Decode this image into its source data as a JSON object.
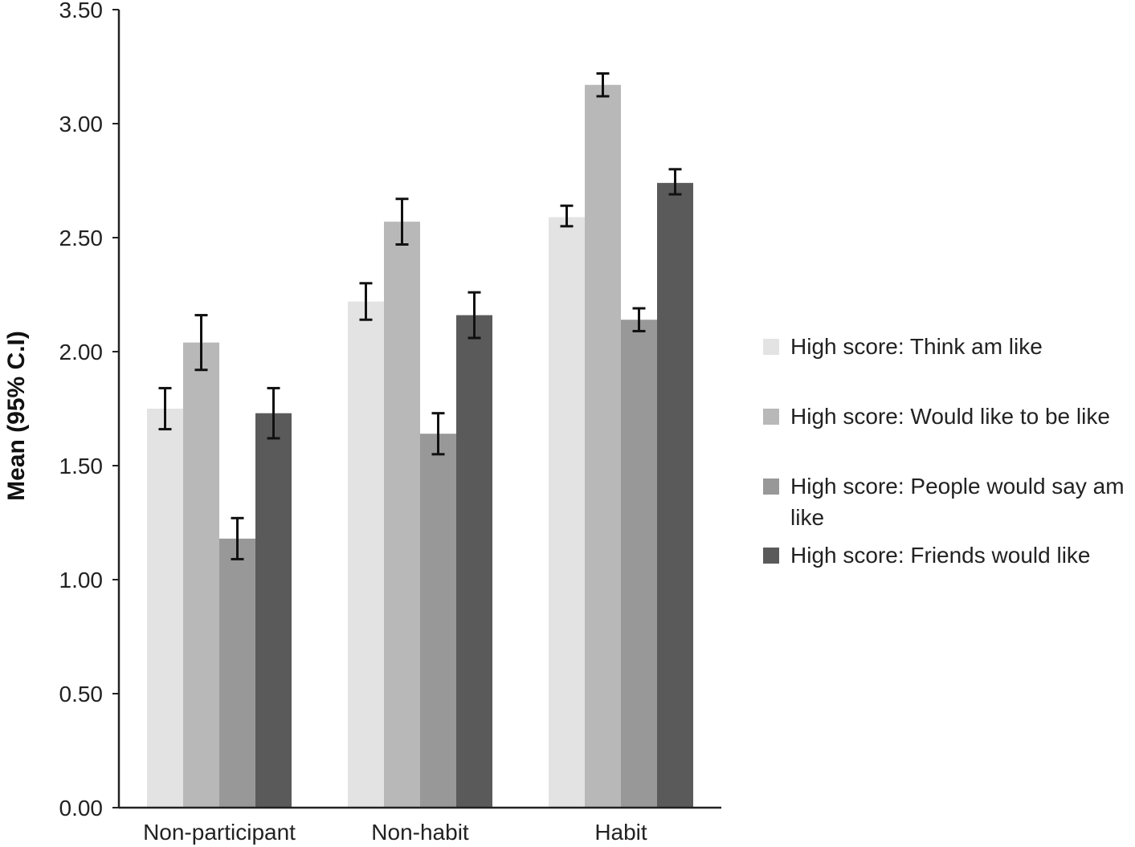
{
  "chart_data": {
    "type": "bar",
    "title": "",
    "xlabel": "",
    "ylabel": "Mean (95% C.I)",
    "ylim": [
      0,
      3.5
    ],
    "yticks": [
      "0.00",
      "0.50",
      "1.00",
      "1.50",
      "2.00",
      "2.50",
      "3.00",
      "3.50"
    ],
    "ytick_values": [
      0,
      0.5,
      1.0,
      1.5,
      2.0,
      2.5,
      3.0,
      3.5
    ],
    "categories": [
      "Non-participant",
      "Non-habit",
      "Habit"
    ],
    "series": [
      {
        "name": "High score: Think am like",
        "color": "#e3e3e3",
        "values": [
          1.75,
          2.22,
          2.59
        ],
        "ci_low": [
          1.66,
          2.14,
          2.55
        ],
        "ci_high": [
          1.84,
          2.3,
          2.64
        ]
      },
      {
        "name": "High score: Would like to be like",
        "color": "#b8b8b8",
        "values": [
          2.04,
          2.57,
          3.17
        ],
        "ci_low": [
          1.92,
          2.47,
          3.12
        ],
        "ci_high": [
          2.16,
          2.67,
          3.22
        ]
      },
      {
        "name": "High score: People would say am like",
        "color": "#989898",
        "values": [
          1.18,
          1.64,
          2.14
        ],
        "ci_low": [
          1.09,
          1.55,
          2.09
        ],
        "ci_high": [
          1.27,
          1.73,
          2.19
        ]
      },
      {
        "name": "High score: Friends would like",
        "color": "#5a5a5a",
        "values": [
          1.73,
          2.16,
          2.74
        ],
        "ci_low": [
          1.62,
          2.06,
          2.69
        ],
        "ci_high": [
          1.84,
          2.26,
          2.8
        ]
      }
    ],
    "grid": false,
    "legend_position": "right"
  }
}
